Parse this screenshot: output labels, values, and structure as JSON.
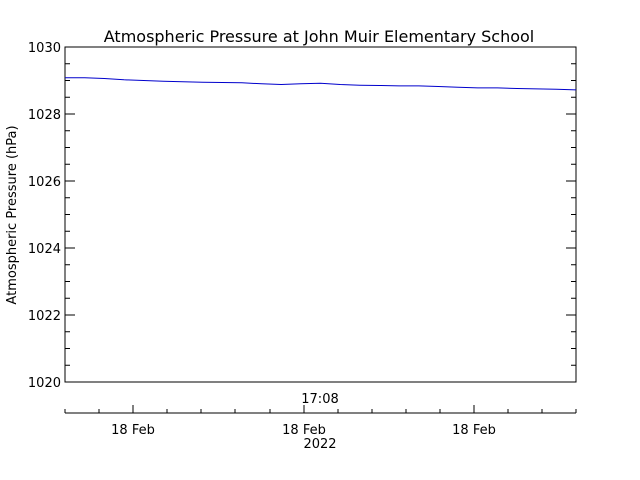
{
  "chart_data": {
    "type": "line",
    "title": "Atmospheric Pressure at John Muir Elementary School",
    "ylabel": "Atmospheric Pressure (hPa)",
    "ylim": [
      1020,
      1030
    ],
    "yticks": [
      1020,
      1022,
      1024,
      1026,
      1028,
      1030
    ],
    "ytick_labels": [
      "1020",
      "1022",
      "1024",
      "1026",
      "1028",
      "1030"
    ],
    "x_axis_label": "17:08",
    "xtick_labels": [
      "18 Feb",
      "18 Feb",
      "18 Feb"
    ],
    "x_year_label": "2022",
    "grid": false,
    "series": [
      {
        "color": "#0000cc",
        "values": [
          1029.08,
          1029.08,
          1029.06,
          1029.02,
          1029.0,
          1028.98,
          1028.96,
          1028.95,
          1028.94,
          1028.93,
          1028.9,
          1028.88,
          1028.9,
          1028.92,
          1028.88,
          1028.86,
          1028.85,
          1028.84,
          1028.84,
          1028.82,
          1028.8,
          1028.78,
          1028.78,
          1028.76,
          1028.75,
          1028.74,
          1028.72
        ]
      }
    ]
  }
}
